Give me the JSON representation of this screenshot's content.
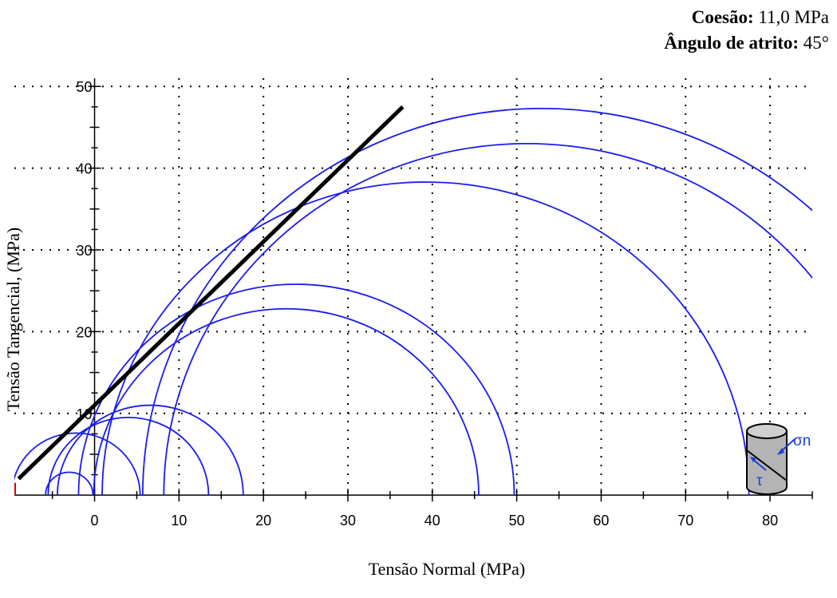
{
  "params": {
    "cohesion_label": "Coesão:",
    "cohesion_value": "11,0 MPa",
    "friction_label": "Ângulo de atrito:",
    "friction_value": "45°"
  },
  "icon": {
    "sigma_label": "σn",
    "tau_label": "τ"
  },
  "colors": {
    "circles": "#1a1af0",
    "envelope": "#000000",
    "grid": "#000000",
    "marker": "#e00000"
  },
  "chart_data": {
    "type": "line",
    "xlabel": "Tensão Normal (MPa)",
    "ylabel": "Tensão Tangencial, (MPa)",
    "xlim": [
      -9.5,
      85
    ],
    "ylim": [
      -3.5,
      51
    ],
    "x_ticks": [
      0,
      10,
      20,
      30,
      40,
      50,
      60,
      70,
      80
    ],
    "y_ticks": [
      10,
      20,
      30,
      40,
      50
    ],
    "grid": true,
    "mohr_circles": [
      {
        "center": -3.0,
        "radius": 2.8
      },
      {
        "center": -2.2,
        "radius": 7.6
      },
      {
        "center": 4.0,
        "radius": 9.5
      },
      {
        "center": 6.6,
        "radius": 11.0
      },
      {
        "center": 22.7,
        "radius": 22.8
      },
      {
        "center": 23.9,
        "radius": 25.8
      },
      {
        "center": 39.2,
        "radius": 38.3
      },
      {
        "center": 51.2,
        "radius": 43.0
      },
      {
        "center": 53.0,
        "radius": 47.3
      }
    ],
    "failure_envelope": {
      "cohesion": 11.0,
      "friction_angle_deg": 45,
      "x_start": -9.0,
      "x_end": 36.5
    }
  }
}
